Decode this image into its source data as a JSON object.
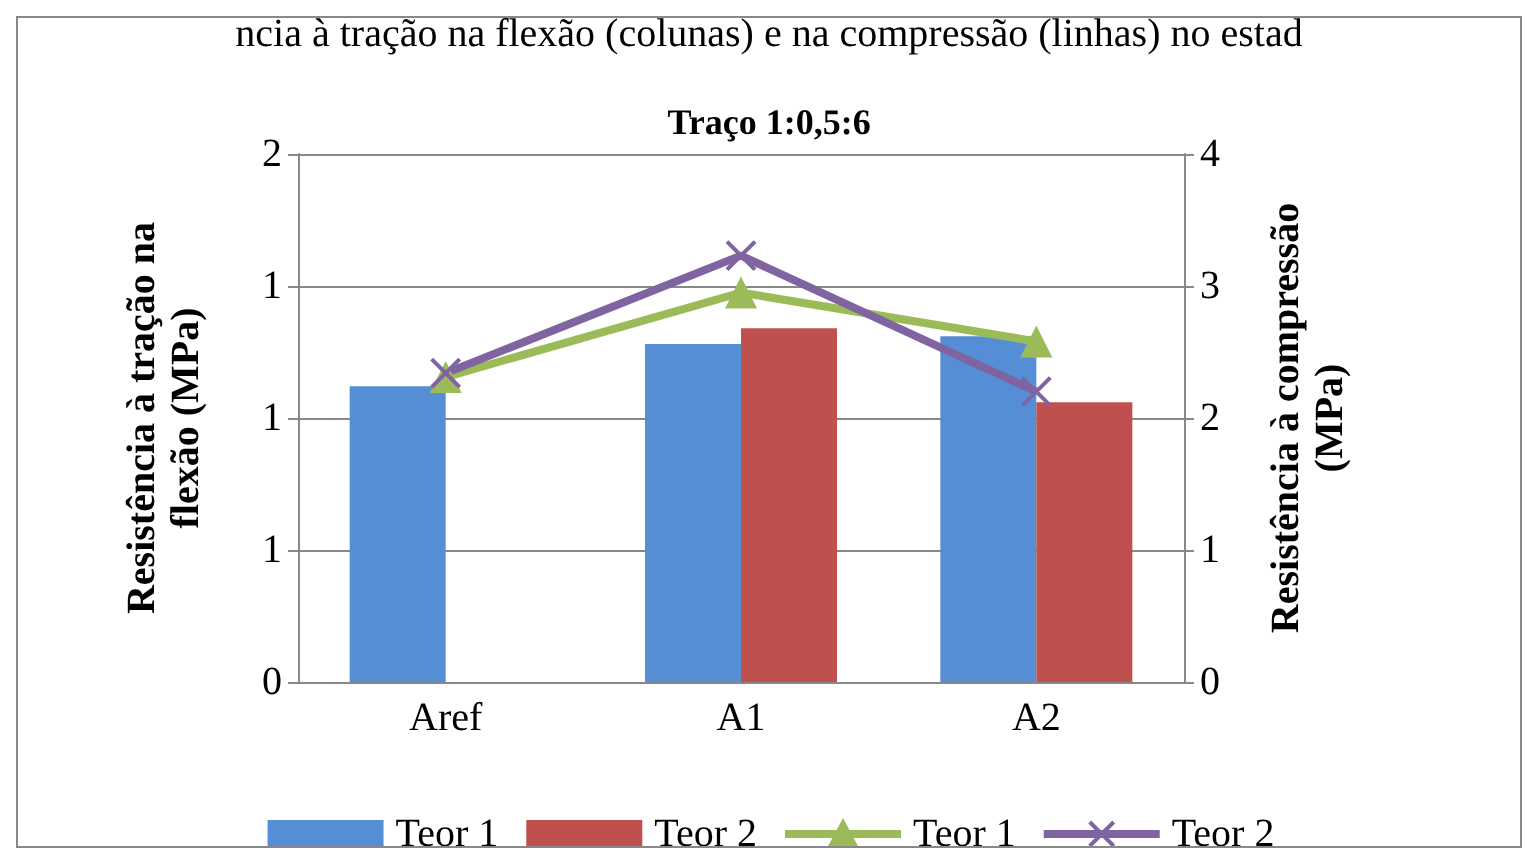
{
  "chart_data": {
    "type": "bar",
    "title": "Traço 1:0,5:6",
    "ylabel": "Resistência à tração na flexão (MPa)",
    "y2label": "Resistência à compressão (MPa)",
    "annotations": [
      "ncia à tração na flexão (colunas) e na compressão (linhas) no estad"
    ],
    "categories": [
      "Aref",
      "A1",
      "A2"
    ],
    "series": [
      {
        "name": "Teor 1",
        "color": "#558ed5",
        "values": [
          1.12,
          1.28,
          1.31
        ]
      },
      {
        "name": "Teor 2",
        "color": "#c0504d",
        "values": [
          null,
          1.34,
          1.06
        ]
      },
      {
        "name": "Teor 1",
        "type": "line",
        "axis": "y2",
        "marker": "triangle",
        "color": "#9bbb59",
        "values": [
          2.31,
          2.95,
          2.58
        ]
      },
      {
        "name": "Teor 2",
        "type": "line",
        "axis": "y2",
        "marker": "cross",
        "color": "#8064a2",
        "values": [
          2.34,
          3.23,
          2.2
        ]
      }
    ],
    "ylim": [
      0,
      2
    ],
    "yticks": [
      0,
      {
        "value": 0.5,
        "label": "1"
      },
      1,
      {
        "value": 1.5,
        "label": "1"
      },
      2
    ],
    "y2lim": [
      0,
      4
    ],
    "y2ticks": [
      0,
      1,
      2,
      3,
      4
    ],
    "grid": "y",
    "legend": "bottom"
  }
}
